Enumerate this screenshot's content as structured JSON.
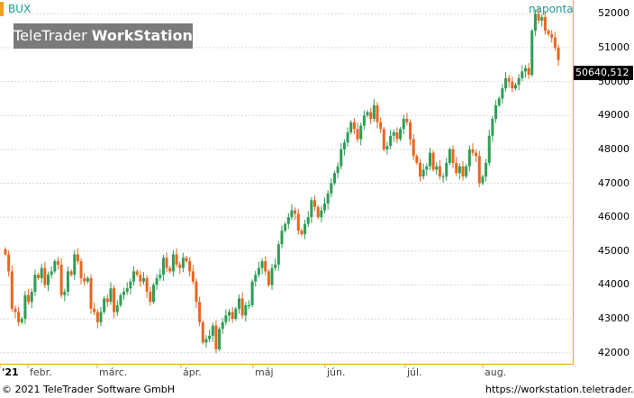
{
  "header": {
    "symbol": "BUX",
    "interval": "naponta",
    "watermark_brand": "TeleTrader",
    "watermark_product": "WorkStation"
  },
  "last_price_label": "50640,512",
  "footer": {
    "copyright": "© 2021 TeleTrader Software GmbH",
    "website": "https://workstation.teletrader.com/"
  },
  "colors": {
    "up": "#2e9e55",
    "down": "#e8661f",
    "axis": "#f0b020",
    "grid": "#d8d8d8",
    "accent": "#1a9b8f"
  },
  "chart_data": {
    "type": "candlestick",
    "title": "BUX",
    "interval": "naponta",
    "ylim": [
      41700,
      52300
    ],
    "y_ticks": [
      "42000",
      "43000",
      "44000",
      "45000",
      "46000",
      "47000",
      "48000",
      "49000",
      "50000",
      "51000",
      "52000"
    ],
    "x_ticks": [
      "'21",
      "febr.",
      "márc.",
      "ápr.",
      "máj",
      "jún.",
      "júl.",
      "aug."
    ],
    "grid": true,
    "last_value": 50640.512,
    "close": [
      44900,
      44400,
      43300,
      43200,
      42900,
      43000,
      43700,
      43500,
      43800,
      44300,
      44200,
      44500,
      44000,
      44300,
      44400,
      44700,
      44600,
      43700,
      43800,
      44400,
      44300,
      44900,
      44700,
      44200,
      44100,
      44200,
      43300,
      43200,
      42900,
      43200,
      43600,
      43500,
      43900,
      43200,
      43400,
      43700,
      43800,
      43900,
      44100,
      44400,
      44300,
      44100,
      44200,
      43800,
      43500,
      44000,
      44200,
      44300,
      44800,
      44500,
      44400,
      44900,
      44600,
      44500,
      44800,
      44700,
      44400,
      44100,
      43500,
      42900,
      42300,
      42400,
      42500,
      42800,
      42100,
      42700,
      42900,
      43100,
      43200,
      43000,
      43300,
      43600,
      43100,
      43400,
      43400,
      44100,
      44300,
      44500,
      44700,
      44400,
      44000,
      44500,
      44600,
      45200,
      45600,
      45800,
      46000,
      46200,
      46100,
      45600,
      45500,
      45800,
      46000,
      46500,
      46300,
      46000,
      46200,
      46400,
      46700,
      47000,
      47300,
      47500,
      48000,
      48200,
      48500,
      48800,
      48600,
      48300,
      48700,
      49000,
      49100,
      48900,
      49300,
      48800,
      48600,
      48000,
      48100,
      48400,
      48500,
      48300,
      48600,
      48900,
      48800,
      48300,
      47800,
      47600,
      47200,
      47400,
      47500,
      47900,
      47400,
      47500,
      47200,
      47200,
      47600,
      48000,
      47600,
      47300,
      47500,
      47200,
      47500,
      48000,
      47900,
      47800,
      47000,
      47200,
      47600,
      48400,
      48900,
      49300,
      49500,
      49800,
      50100,
      50000,
      49800,
      49900,
      50100,
      50300,
      50400,
      50200,
      51500,
      52000,
      51800,
      51900,
      51500,
      51400,
      51300,
      51000,
      50640
    ]
  }
}
